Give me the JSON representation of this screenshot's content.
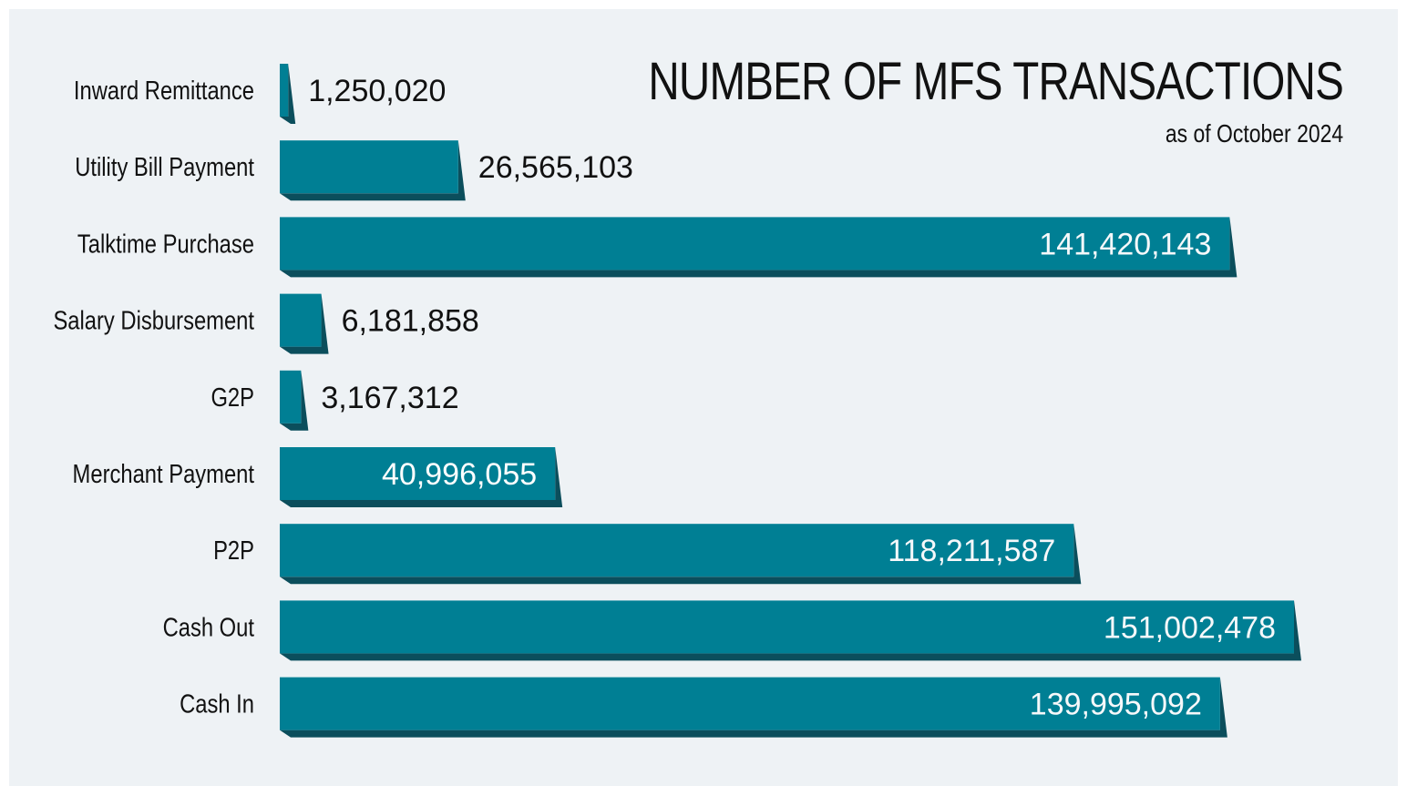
{
  "chart_data": {
    "type": "bar",
    "orientation": "horizontal",
    "title": "NUMBER OF MFS TRANSACTIONS",
    "subtitle": "as of October 2024",
    "categories": [
      "Inward Remittance",
      "Utility Bill Payment",
      "Talktime Purchase",
      "Salary Disbursement",
      "G2P",
      "Merchant Payment",
      "P2P",
      "Cash Out",
      "Cash In"
    ],
    "values": [
      1250020,
      26565103,
      141420143,
      6181858,
      3167312,
      40996055,
      118211587,
      151002478,
      139995092
    ],
    "value_labels": [
      "1,250,020",
      "26,565,103",
      "141,420,143",
      "6,181,858",
      "3,167,312",
      "40,996,055",
      "118,211,587",
      "151,002,478",
      "139,995,092"
    ],
    "xlim": [
      0,
      151002478
    ],
    "grid": false,
    "legend": "none",
    "colors": {
      "bar_face": "#007f94",
      "bar_shadow": "#0b4e5c",
      "label_dark": "#111111",
      "label_light": "#ffffff",
      "label_faint": "#f6f8fa",
      "background": "#eef2f5"
    }
  }
}
